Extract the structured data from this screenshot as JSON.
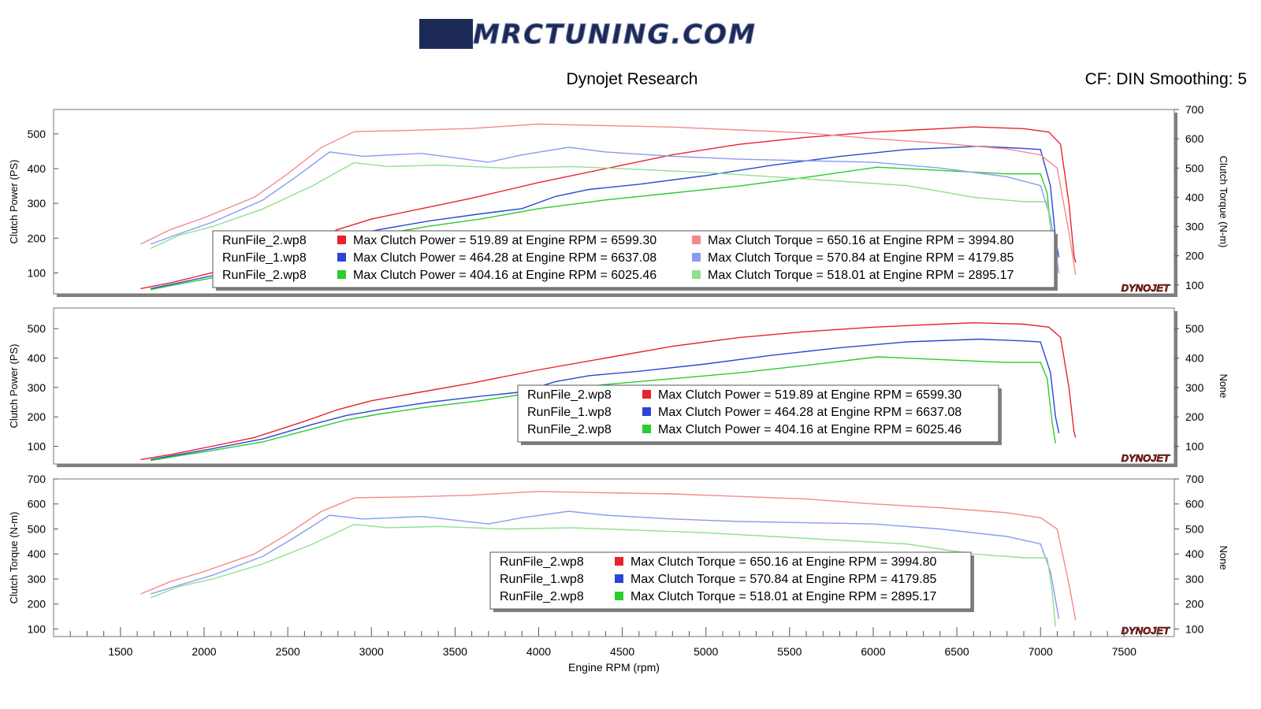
{
  "header": {
    "logo": "MRCTUNING.COM",
    "title": "Dynojet Research",
    "settings": "CF: DIN Smoothing: 5"
  },
  "brand_mark": "DYNOJET",
  "colors": {
    "run_red": "#e8232a",
    "run_blue": "#2b46d6",
    "run_green": "#2bcc2b",
    "run_red_torque": "#f28a8a",
    "run_blue_torque": "#8a9cf0",
    "run_green_torque": "#8fe08f"
  },
  "chart_data": [
    {
      "type": "line",
      "panel": "combined",
      "xlabel": "",
      "ylabel_left": "Clutch Power (PS)",
      "ylabel_right": "Clutch Torque (N-m)",
      "xlim": [
        1100,
        7800
      ],
      "ylim_left": [
        40,
        570
      ],
      "ylim_right": [
        70,
        700
      ],
      "yticks_left": [
        100,
        200,
        300,
        400,
        500
      ],
      "yticks_right": [
        100,
        200,
        300,
        400,
        500,
        600,
        700
      ],
      "series": [
        {
          "name": "RunFile_2.wp8",
          "measure": "power",
          "color": "#e8232a",
          "x": [
            1620,
            1800,
            2000,
            2300,
            2600,
            2800,
            3000,
            3300,
            3600,
            4000,
            4400,
            4800,
            5200,
            5600,
            6000,
            6400,
            6600,
            6900,
            7050,
            7120,
            7170,
            7200,
            7210
          ],
          "y": [
            55,
            72,
            95,
            130,
            185,
            225,
            255,
            285,
            315,
            360,
            400,
            440,
            470,
            490,
            505,
            515,
            519.89,
            515,
            505,
            470,
            300,
            150,
            130
          ]
        },
        {
          "name": "RunFile_1.wp8",
          "measure": "power",
          "color": "#2b46d6",
          "x": [
            1680,
            1850,
            2050,
            2350,
            2650,
            2850,
            3050,
            3350,
            3650,
            3900,
            4100,
            4300,
            4600,
            5000,
            5400,
            5800,
            6200,
            6637,
            6900,
            7000,
            7060,
            7090,
            7110
          ],
          "y": [
            55,
            72,
            92,
            125,
            175,
            205,
            225,
            250,
            270,
            285,
            320,
            340,
            355,
            380,
            410,
            435,
            455,
            464.28,
            458,
            455,
            350,
            200,
            145
          ]
        },
        {
          "name": "RunFile_2.wp8",
          "measure": "power",
          "color": "#2bcc2b",
          "x": [
            1680,
            1850,
            2050,
            2350,
            2650,
            2850,
            3050,
            3350,
            3650,
            4000,
            4400,
            4800,
            5200,
            5600,
            6025,
            6400,
            6800,
            7000,
            7040,
            7070,
            7090
          ],
          "y": [
            52,
            68,
            86,
            115,
            160,
            190,
            210,
            235,
            255,
            285,
            310,
            330,
            350,
            375,
            404.16,
            395,
            385,
            385,
            330,
            180,
            110
          ]
        },
        {
          "name": "RunFile_2.wp8",
          "measure": "torque",
          "color": "#f28a8a",
          "x": [
            1620,
            1800,
            2000,
            2300,
            2500,
            2700,
            2900,
            3200,
            3600,
            3994.8,
            4400,
            4800,
            5200,
            5600,
            6000,
            6400,
            6800,
            7000,
            7100,
            7170,
            7210
          ],
          "y": [
            240,
            290,
            330,
            400,
            480,
            570,
            625,
            628,
            635,
            650.16,
            645,
            640,
            630,
            620,
            600,
            585,
            565,
            545,
            500,
            280,
            135
          ]
        },
        {
          "name": "RunFile_1.wp8",
          "measure": "torque",
          "color": "#8a9cf0",
          "x": [
            1680,
            1850,
            2050,
            2350,
            2550,
            2750,
            2950,
            3300,
            3700,
            3900,
            4179.85,
            4400,
            4800,
            5200,
            5600,
            6000,
            6400,
            6800,
            7000,
            7060,
            7110
          ],
          "y": [
            240,
            275,
            315,
            390,
            470,
            555,
            540,
            550,
            520,
            545,
            570.84,
            555,
            540,
            530,
            525,
            520,
            500,
            470,
            440,
            330,
            140
          ]
        },
        {
          "name": "RunFile_2.wp8",
          "measure": "torque",
          "color": "#8fe08f",
          "x": [
            1680,
            1850,
            2050,
            2350,
            2650,
            2895.17,
            3100,
            3400,
            3800,
            4200,
            4600,
            5000,
            5400,
            5800,
            6200,
            6600,
            6900,
            7040,
            7070,
            7090
          ],
          "y": [
            225,
            270,
            300,
            360,
            440,
            518.01,
            505,
            510,
            500,
            505,
            495,
            485,
            470,
            455,
            440,
            400,
            385,
            385,
            250,
            110
          ]
        }
      ],
      "legend": [
        {
          "file": "RunFile_2.wp8",
          "power": "Max Clutch Power = 519.89 at Engine RPM = 6599.30",
          "torque": "Max Clutch Torque = 650.16 at Engine RPM = 3994.80"
        },
        {
          "file": "RunFile_1.wp8",
          "power": "Max Clutch Power = 464.28 at Engine RPM = 6637.08",
          "torque": "Max Clutch Torque = 570.84 at Engine RPM = 4179.85"
        },
        {
          "file": "RunFile_2.wp8",
          "power": "Max Clutch Power = 404.16 at Engine RPM = 6025.46",
          "torque": "Max Clutch Torque = 518.01 at Engine RPM = 2895.17"
        }
      ]
    },
    {
      "type": "line",
      "panel": "power",
      "xlabel": "",
      "ylabel_left": "Clutch Power (PS)",
      "ylabel_right": "None",
      "xlim": [
        1100,
        7800
      ],
      "ylim_left": [
        40,
        570
      ],
      "ylim_right": [
        40,
        570
      ],
      "yticks_left": [
        100,
        200,
        300,
        400,
        500
      ],
      "yticks_right": [
        100,
        200,
        300,
        400,
        500
      ],
      "series_ref": "power",
      "legend": [
        {
          "file": "RunFile_2.wp8",
          "power": "Max Clutch Power = 519.89 at Engine RPM = 6599.30"
        },
        {
          "file": "RunFile_1.wp8",
          "power": "Max Clutch Power = 464.28 at Engine RPM = 6637.08"
        },
        {
          "file": "RunFile_2.wp8",
          "power": "Max Clutch Power = 404.16 at Engine RPM = 6025.46"
        }
      ]
    },
    {
      "type": "line",
      "panel": "torque",
      "xlabel": "Engine RPM (rpm)",
      "ylabel_left": "Clutch Torque (N-m)",
      "ylabel_right": "None",
      "xlim": [
        1100,
        7800
      ],
      "ylim_left": [
        70,
        700
      ],
      "ylim_right": [
        70,
        700
      ],
      "yticks_left": [
        100,
        200,
        300,
        400,
        500,
        600,
        700
      ],
      "yticks_right": [
        100,
        200,
        300,
        400,
        500,
        600,
        700
      ],
      "xticks": [
        1500,
        2000,
        2500,
        3000,
        3500,
        4000,
        4500,
        5000,
        5500,
        6000,
        6500,
        7000,
        7500
      ],
      "series_ref": "torque",
      "legend": [
        {
          "file": "RunFile_2.wp8",
          "torque": "Max Clutch Torque = 650.16 at Engine RPM = 3994.80"
        },
        {
          "file": "RunFile_1.wp8",
          "torque": "Max Clutch Torque = 570.84 at Engine RPM = 4179.85"
        },
        {
          "file": "RunFile_2.wp8",
          "torque": "Max Clutch Torque = 518.01 at Engine RPM = 2895.17"
        }
      ]
    }
  ]
}
